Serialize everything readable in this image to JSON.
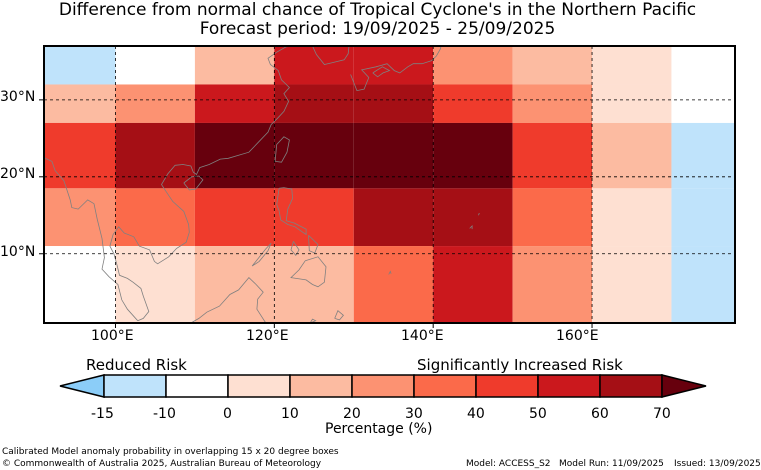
{
  "title": {
    "line1": "Difference from normal chance of Tropical Cyclone's in the Northern Pacific",
    "line2": "Forecast period: 19/09/2025 - 25/09/2025"
  },
  "map": {
    "lon_range": [
      91,
      178
    ],
    "lat_range": [
      1,
      37
    ],
    "lat_labels": [
      "30°N",
      "20°N",
      "10°N"
    ],
    "lon_labels": [
      "100°E",
      "120°E",
      "140°E",
      "160°E"
    ],
    "col_bounds": [
      91,
      100,
      110,
      120,
      130,
      140,
      150,
      160,
      170,
      178
    ],
    "row_bounds": [
      37,
      32,
      27,
      18.5,
      11,
      1
    ],
    "grid": [
      [
        -15,
        -10,
        10,
        50,
        50,
        20,
        10,
        0,
        -10
      ],
      [
        10,
        20,
        50,
        60,
        60,
        40,
        20,
        0,
        -10
      ],
      [
        40,
        60,
        70,
        70,
        70,
        70,
        40,
        10,
        -15
      ],
      [
        20,
        30,
        40,
        40,
        60,
        60,
        30,
        0,
        -15
      ],
      [
        -10,
        0,
        10,
        10,
        30,
        50,
        20,
        0,
        -15
      ]
    ]
  },
  "legend": {
    "left_label": "Reduced Risk",
    "right_label": "Significantly Increased Risk",
    "ticks": [
      "-15",
      "-10",
      "0",
      "10",
      "20",
      "30",
      "40",
      "50",
      "60",
      "70"
    ],
    "xlabel": "Percentage (%)",
    "bins": [
      {
        "lo": -15,
        "hi": -10,
        "color": "#bfe3fb"
      },
      {
        "lo": -10,
        "hi": 0,
        "color": "#ffffff"
      },
      {
        "lo": 0,
        "hi": 10,
        "color": "#fee0d2"
      },
      {
        "lo": 10,
        "hi": 20,
        "color": "#fcbba1"
      },
      {
        "lo": 20,
        "hi": 30,
        "color": "#fc9272"
      },
      {
        "lo": 30,
        "hi": 40,
        "color": "#fb6a4a"
      },
      {
        "lo": 40,
        "hi": 50,
        "color": "#ef3b2c"
      },
      {
        "lo": 50,
        "hi": 60,
        "color": "#cb181d"
      },
      {
        "lo": 60,
        "hi": 70,
        "color": "#a50f15"
      }
    ],
    "under_color": "#8bcdf8",
    "over_color": "#67000d"
  },
  "footer": {
    "description": "Calibrated Model anomaly probability in overlapping 15 x 20 degree boxes",
    "copyright": "© Commonwealth of Australia 2025, Australian Bureau of Meteorology",
    "model": "Model: ACCESS_S2",
    "model_run": "Model Run: 11/09/2025",
    "issued": "Issued: 13/09/2025"
  }
}
